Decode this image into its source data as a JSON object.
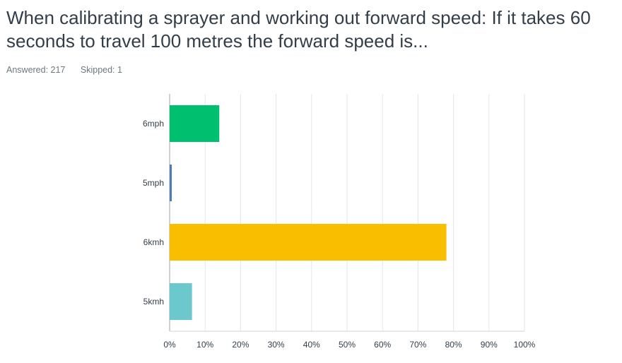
{
  "question": {
    "title": "When calibrating a sprayer and working out forward speed: If it takes 60 seconds to travel 100 metres the forward speed is..."
  },
  "stats": {
    "answered": "Answered: 217",
    "skipped": "Skipped: 1"
  },
  "chart_data": {
    "type": "bar",
    "orientation": "horizontal",
    "categories": [
      "6mph",
      "5mph",
      "6kmh",
      "5kmh"
    ],
    "values": [
      14,
      0.6,
      78,
      6.3
    ],
    "colors": [
      "#00bf6f",
      "#507cb6",
      "#f9be00",
      "#6bc8cd"
    ],
    "xlim": [
      0,
      100
    ],
    "xticks": [
      "0%",
      "10%",
      "20%",
      "30%",
      "40%",
      "50%",
      "60%",
      "70%",
      "80%",
      "90%",
      "100%"
    ],
    "grid": true
  }
}
